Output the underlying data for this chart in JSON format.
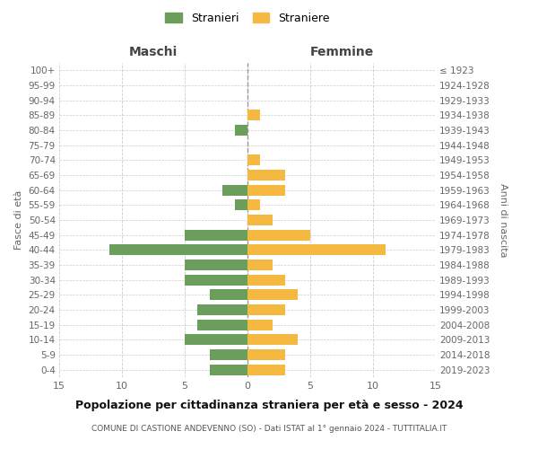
{
  "age_groups": [
    "0-4",
    "5-9",
    "10-14",
    "15-19",
    "20-24",
    "25-29",
    "30-34",
    "35-39",
    "40-44",
    "45-49",
    "50-54",
    "55-59",
    "60-64",
    "65-69",
    "70-74",
    "75-79",
    "80-84",
    "85-89",
    "90-94",
    "95-99",
    "100+"
  ],
  "birth_years": [
    "2019-2023",
    "2014-2018",
    "2009-2013",
    "2004-2008",
    "1999-2003",
    "1994-1998",
    "1989-1993",
    "1984-1988",
    "1979-1983",
    "1974-1978",
    "1969-1973",
    "1964-1968",
    "1959-1963",
    "1954-1958",
    "1949-1953",
    "1944-1948",
    "1939-1943",
    "1934-1938",
    "1929-1933",
    "1924-1928",
    "≤ 1923"
  ],
  "maschi": [
    3,
    3,
    5,
    4,
    4,
    3,
    5,
    5,
    11,
    5,
    0,
    1,
    2,
    0,
    0,
    0,
    1,
    0,
    0,
    0,
    0
  ],
  "femmine": [
    3,
    3,
    4,
    2,
    3,
    4,
    3,
    2,
    11,
    5,
    2,
    1,
    3,
    3,
    1,
    0,
    0,
    1,
    0,
    0,
    0
  ],
  "color_maschi": "#6a9e5a",
  "color_femmine": "#f5b942",
  "title": "Popolazione per cittadinanza straniera per età e sesso - 2024",
  "subtitle": "COMUNE DI CASTIONE ANDEVENNO (SO) - Dati ISTAT al 1° gennaio 2024 - TUTTITALIA.IT",
  "xlabel_left": "Maschi",
  "xlabel_right": "Femmine",
  "ylabel_left": "Fasce di età",
  "ylabel_right": "Anni di nascita",
  "legend_maschi": "Stranieri",
  "legend_femmine": "Straniere",
  "xlim": 15,
  "background_color": "#ffffff",
  "grid_color": "#cccccc"
}
